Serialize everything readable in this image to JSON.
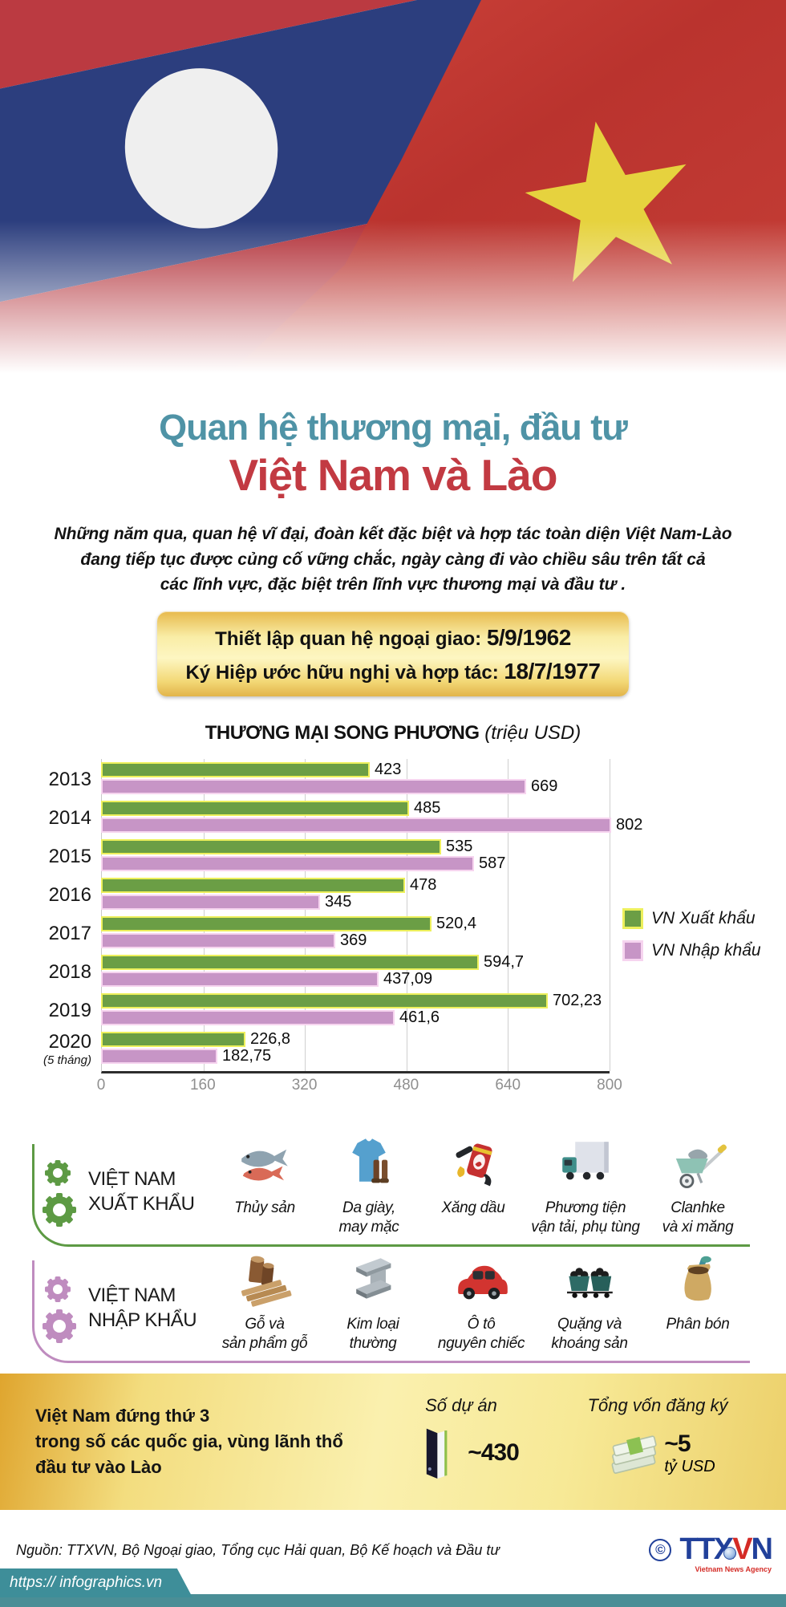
{
  "header": {
    "title_line1": "Quan hệ thương mại, đầu tư",
    "title_line2": "Việt Nam và Lào",
    "intro_lines": [
      "Những năm qua, quan hệ vĩ đại, đoàn kết đặc biệt và hợp tác toàn diện Việt Nam-Lào",
      "đang tiếp tục được củng cố vững chắc, ngày càng đi vào chiều sâu trên tất cả",
      "các lĩnh vực, đặc biệt trên lĩnh vực thương mại và đầu tư ."
    ],
    "milestones": [
      {
        "label": "Thiết lập quan hệ ngoại giao: ",
        "date": "5/9/1962"
      },
      {
        "label": "Ký Hiệp ước hữu nghị và hợp tác: ",
        "date": "18/7/1977"
      }
    ]
  },
  "chart_data": {
    "type": "bar",
    "orientation": "horizontal",
    "title": "THƯƠNG MẠI SONG PHƯƠNG",
    "title_unit": "(triệu USD)",
    "categories": [
      "2013",
      "2014",
      "2015",
      "2016",
      "2017",
      "2018",
      "2019",
      "2020"
    ],
    "category_notes": {
      "2020": "(5 tháng)"
    },
    "series": [
      {
        "name": "VN Xuất khẩu",
        "color": "#6b9e45",
        "border": "#edf05c",
        "values": [
          423,
          485,
          535,
          478,
          520.4,
          594.7,
          702.23,
          226.8
        ],
        "labels": [
          "423",
          "485",
          "535",
          "478",
          "520,4",
          "594,7",
          "702,23",
          "226,8"
        ]
      },
      {
        "name": "VN Nhập khẩu",
        "color": "#c795c6",
        "border": "#f6d4ef",
        "values": [
          669,
          802,
          587,
          345,
          369,
          437.09,
          461.6,
          182.75
        ],
        "labels": [
          "669",
          "802",
          "587",
          "345",
          "369",
          "437,09",
          "461,6",
          "182,75"
        ]
      }
    ],
    "xlim": [
      0,
      800
    ],
    "xticks": [
      "0",
      "160",
      "320",
      "480",
      "640",
      "800"
    ],
    "grid": true,
    "legend_position": "right"
  },
  "export_section": {
    "title_line1": "VIỆT NAM",
    "title_line2": "XUẤT KHẨU",
    "items": [
      {
        "icon": "fish-icon",
        "label_lines": [
          "Thủy sản"
        ]
      },
      {
        "icon": "clothing-shoes-icon",
        "label_lines": [
          "Da giày,",
          "may mặc"
        ]
      },
      {
        "icon": "fuel-pump-icon",
        "label_lines": [
          "Xăng dầu"
        ]
      },
      {
        "icon": "truck-icon",
        "label_lines": [
          "Phương tiện",
          "vận tải, phụ tùng"
        ]
      },
      {
        "icon": "wheelbarrow-icon",
        "label_lines": [
          "Clanhke",
          "và xi măng"
        ]
      }
    ]
  },
  "import_section": {
    "title_line1": "VIỆT NAM",
    "title_line2": "NHẬP KHẨU",
    "items": [
      {
        "icon": "wood-icon",
        "label_lines": [
          "Gỗ và",
          "sản phẩm gỗ"
        ]
      },
      {
        "icon": "steel-beam-icon",
        "label_lines": [
          "Kim loại",
          "thường"
        ]
      },
      {
        "icon": "car-icon",
        "label_lines": [
          "Ô tô",
          "nguyên chiếc"
        ]
      },
      {
        "icon": "ore-carts-icon",
        "label_lines": [
          "Quặng và",
          "khoáng sản"
        ]
      },
      {
        "icon": "fertilizer-sack-icon",
        "label_lines": [
          "Phân bón"
        ]
      }
    ]
  },
  "investment": {
    "rank_lines": [
      "Việt Nam đứng thứ 3",
      "trong số các quốc gia, vùng lãnh thổ",
      "đầu tư vào Lào"
    ],
    "projects": {
      "label": "Số dự án",
      "value": "~430",
      "icon": "binder-icon"
    },
    "capital": {
      "label": "Tổng vốn đăng ký",
      "value": "~5",
      "unit": "tỷ USD",
      "icon": "money-stack-icon"
    }
  },
  "footer": {
    "source": "Nguồn: TTXVN, Bộ Ngoại giao, Tổng cục Hải quan, Bộ Kế hoạch và Đầu tư",
    "website": "https:// infographics.vn",
    "logo": {
      "copyright": "©",
      "letters": [
        {
          "t": "TTX",
          "color": "#21409a"
        },
        {
          "t": "V",
          "color": "#d42b26"
        },
        {
          "t": "N",
          "color": "#21409a"
        }
      ],
      "subtitle": "Vietnam News Agency"
    }
  },
  "colors": {
    "title_teal": "#4f93a6",
    "title_red": "#c23a42",
    "export_accent": "#5d9a44",
    "import_accent": "#bf8cbf",
    "gold_dark": "#dfa52e",
    "gold_light": "#faf0ae",
    "footer_teal": "#3e8e99",
    "vietnam_flag_red": "#c0392f",
    "laos_flag_blue": "#2c3e7e",
    "star_yellow": "#e6d23e"
  }
}
